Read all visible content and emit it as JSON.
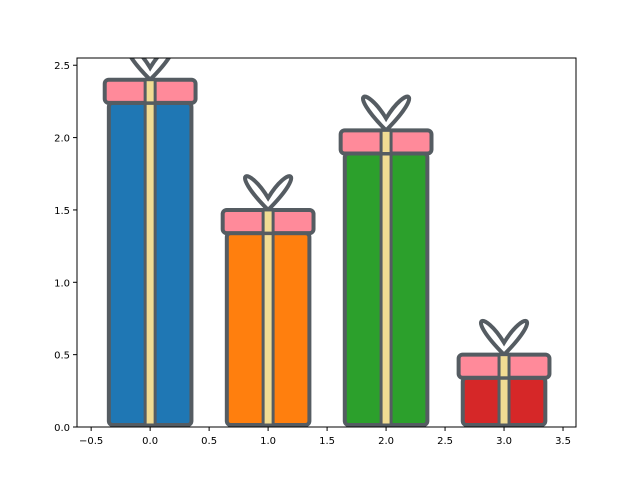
{
  "chart_data": {
    "type": "bar",
    "x": [
      0,
      1,
      2,
      3
    ],
    "values": [
      2.4,
      1.5,
      2.05,
      0.5
    ],
    "colors": [
      "#1f77b4",
      "#ff7f0e",
      "#2ca02c",
      "#d62728"
    ],
    "xlim": [
      -0.62,
      3.61
    ],
    "ylim": [
      0,
      2.55
    ],
    "xticks": [
      {
        "value": -0.5,
        "label": "−0.5"
      },
      {
        "value": 0,
        "label": "0.0"
      },
      0.5,
      {
        "value": 1,
        "label": "1.0"
      },
      1.5,
      {
        "value": 2,
        "label": "2.0"
      },
      2.5,
      {
        "value": 3,
        "label": "3.0"
      },
      3.5
    ],
    "yticks": [
      {
        "value": 0,
        "label": "0.0"
      },
      0.5,
      {
        "value": 1,
        "label": "1.0"
      },
      1.5,
      {
        "value": 2,
        "label": "2.0"
      },
      2.5
    ]
  }
}
